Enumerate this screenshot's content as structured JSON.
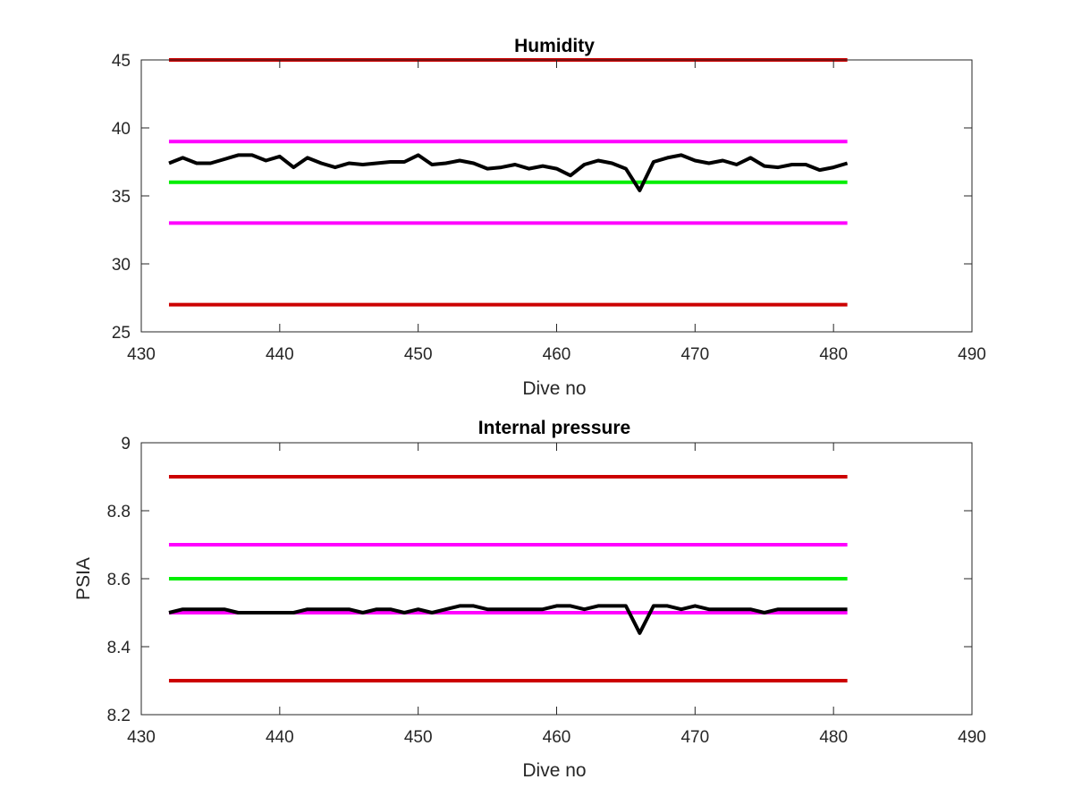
{
  "chart_data": [
    {
      "type": "line",
      "title": "Humidity",
      "xlabel": "Dive no",
      "ylabel": "",
      "xlim": [
        430,
        490
      ],
      "ylim": [
        25,
        45
      ],
      "xticks": [
        "430",
        "440",
        "450",
        "460",
        "470",
        "480",
        "490"
      ],
      "yticks": [
        "25",
        "30",
        "35",
        "40",
        "45"
      ],
      "grid": false,
      "thresholds": [
        {
          "y": 45,
          "x_range": [
            432,
            481
          ],
          "color": "#cc0000"
        },
        {
          "y": 39,
          "x_range": [
            432,
            481
          ],
          "color": "#ff00ff"
        },
        {
          "y": 36,
          "x_range": [
            432,
            481
          ],
          "color": "#00ee00"
        },
        {
          "y": 33,
          "x_range": [
            432,
            481
          ],
          "color": "#ff00ff"
        },
        {
          "y": 27,
          "x_range": [
            432,
            481
          ],
          "color": "#cc0000"
        }
      ],
      "series": [
        {
          "color": "#000000",
          "x": [
            432,
            433,
            434,
            435,
            436,
            437,
            438,
            439,
            440,
            441,
            442,
            443,
            444,
            445,
            446,
            447,
            448,
            449,
            450,
            451,
            452,
            453,
            454,
            455,
            456,
            457,
            458,
            459,
            460,
            461,
            462,
            463,
            464,
            465,
            466,
            467,
            468,
            469,
            470,
            471,
            472,
            473,
            474,
            475,
            476,
            477,
            478,
            479,
            480,
            481
          ],
          "values": [
            37.4,
            37.8,
            37.4,
            37.4,
            37.7,
            38.0,
            38.0,
            37.6,
            37.9,
            37.1,
            37.8,
            37.4,
            37.1,
            37.4,
            37.3,
            37.4,
            37.5,
            37.5,
            38.0,
            37.3,
            37.4,
            37.6,
            37.4,
            37.0,
            37.1,
            37.3,
            37.0,
            37.2,
            37.0,
            36.5,
            37.3,
            37.6,
            37.4,
            37.0,
            35.4,
            37.5,
            37.8,
            38.0,
            37.6,
            37.4,
            37.6,
            37.3,
            37.8,
            37.2,
            37.1,
            37.3,
            37.3,
            36.9,
            37.1,
            37.4
          ]
        }
      ]
    },
    {
      "type": "line",
      "title": "Internal pressure",
      "xlabel": "Dive no",
      "ylabel": "PSIA",
      "xlim": [
        430,
        490
      ],
      "ylim": [
        8.2,
        9.0
      ],
      "xticks": [
        "430",
        "440",
        "450",
        "460",
        "470",
        "480",
        "490"
      ],
      "yticks": [
        "8.2",
        "8.4",
        "8.6",
        "8.8",
        "9"
      ],
      "grid": false,
      "thresholds": [
        {
          "y": 8.9,
          "x_range": [
            432,
            481
          ],
          "color": "#cc0000"
        },
        {
          "y": 8.7,
          "x_range": [
            432,
            481
          ],
          "color": "#ff00ff"
        },
        {
          "y": 8.6,
          "x_range": [
            432,
            481
          ],
          "color": "#00ee00"
        },
        {
          "y": 8.5,
          "x_range": [
            432,
            481
          ],
          "color": "#ff00ff"
        },
        {
          "y": 8.3,
          "x_range": [
            432,
            481
          ],
          "color": "#cc0000"
        }
      ],
      "series": [
        {
          "color": "#000000",
          "x": [
            432,
            433,
            434,
            435,
            436,
            437,
            438,
            439,
            440,
            441,
            442,
            443,
            444,
            445,
            446,
            447,
            448,
            449,
            450,
            451,
            452,
            453,
            454,
            455,
            456,
            457,
            458,
            459,
            460,
            461,
            462,
            463,
            464,
            465,
            466,
            467,
            468,
            469,
            470,
            471,
            472,
            473,
            474,
            475,
            476,
            477,
            478,
            479,
            480,
            481
          ],
          "values": [
            8.5,
            8.51,
            8.51,
            8.51,
            8.51,
            8.5,
            8.5,
            8.5,
            8.5,
            8.5,
            8.51,
            8.51,
            8.51,
            8.51,
            8.5,
            8.51,
            8.51,
            8.5,
            8.51,
            8.5,
            8.51,
            8.52,
            8.52,
            8.51,
            8.51,
            8.51,
            8.51,
            8.51,
            8.52,
            8.52,
            8.51,
            8.52,
            8.52,
            8.52,
            8.44,
            8.52,
            8.52,
            8.51,
            8.52,
            8.51,
            8.51,
            8.51,
            8.51,
            8.5,
            8.51,
            8.51,
            8.51,
            8.51,
            8.51,
            8.51
          ]
        }
      ]
    }
  ]
}
